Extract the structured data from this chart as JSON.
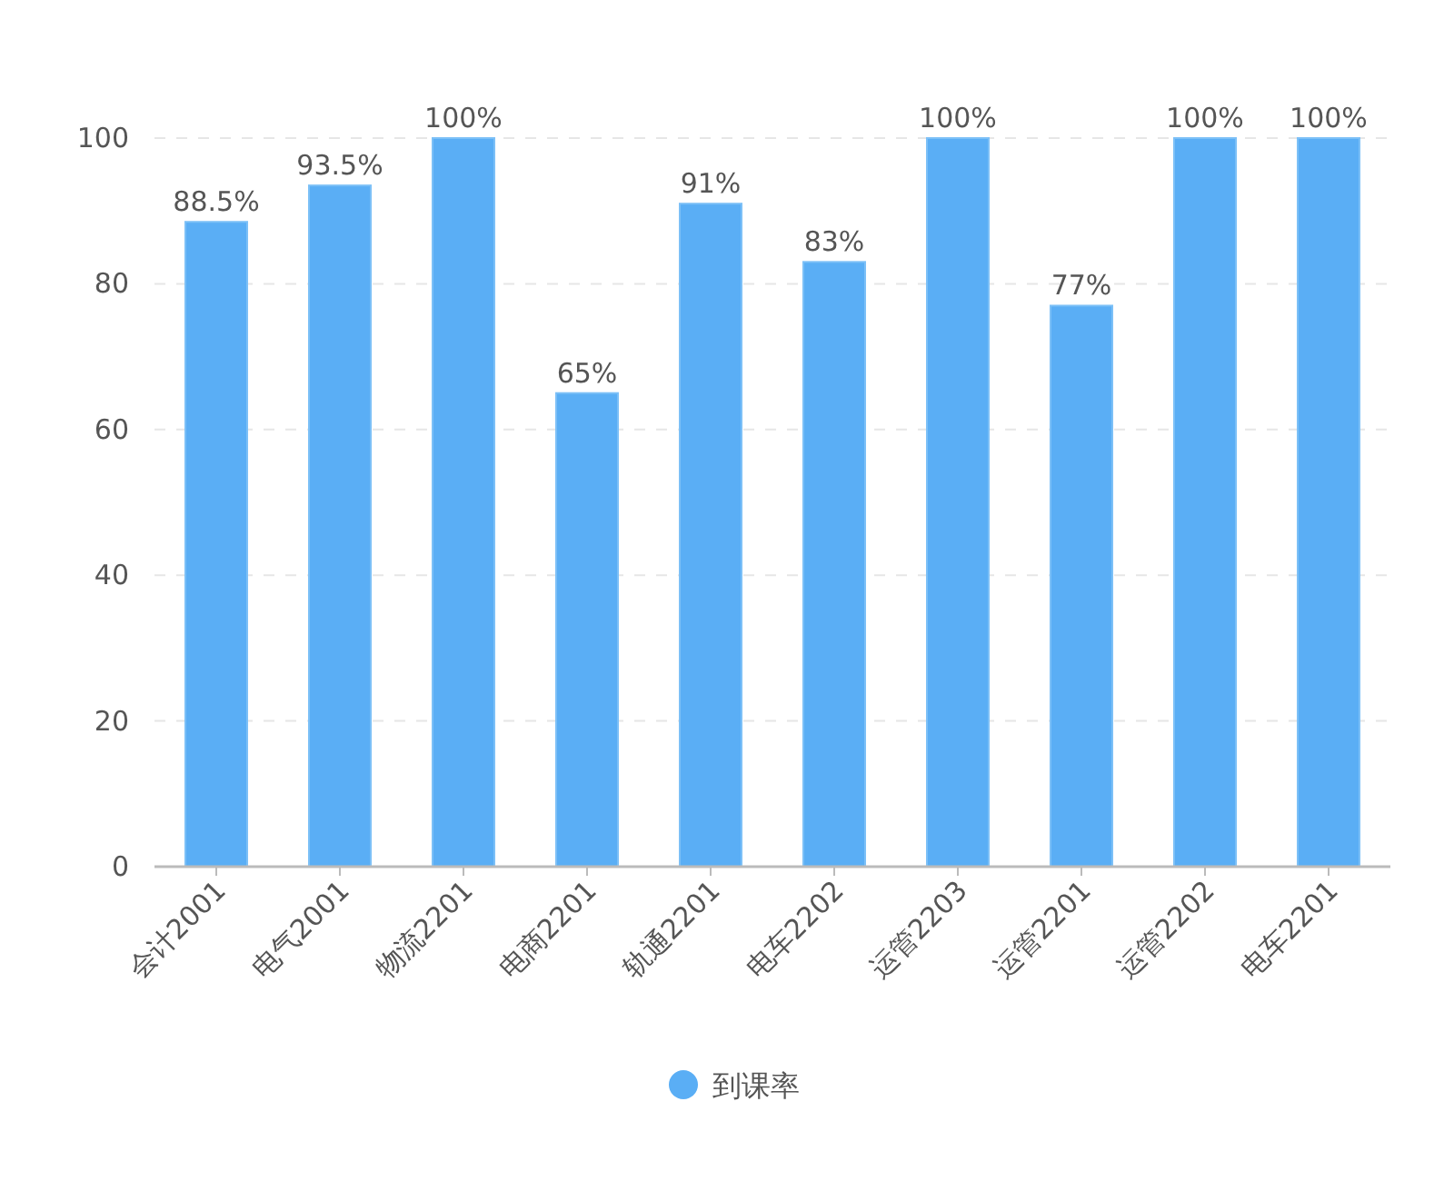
{
  "chart_data": {
    "type": "bar",
    "categories": [
      "会计2001",
      "电气2001",
      "物流2201",
      "电商2201",
      "轨通2201",
      "电车2202",
      "运管2203",
      "运管2201",
      "运管2202",
      "电车2201"
    ],
    "series": [
      {
        "name": "到课率",
        "color": "#5aaef5",
        "values": [
          88.5,
          93.5,
          100,
          65,
          91,
          83,
          100,
          77,
          100,
          100
        ],
        "value_labels": [
          "88.5%",
          "93.5%",
          "100%",
          "65%",
          "91%",
          "83%",
          "100%",
          "77%",
          "100%",
          "100%"
        ]
      }
    ],
    "ylim": [
      0,
      100
    ],
    "yticks": [
      0,
      20,
      40,
      60,
      80,
      100
    ],
    "grid": "y",
    "legend": "bottom"
  }
}
